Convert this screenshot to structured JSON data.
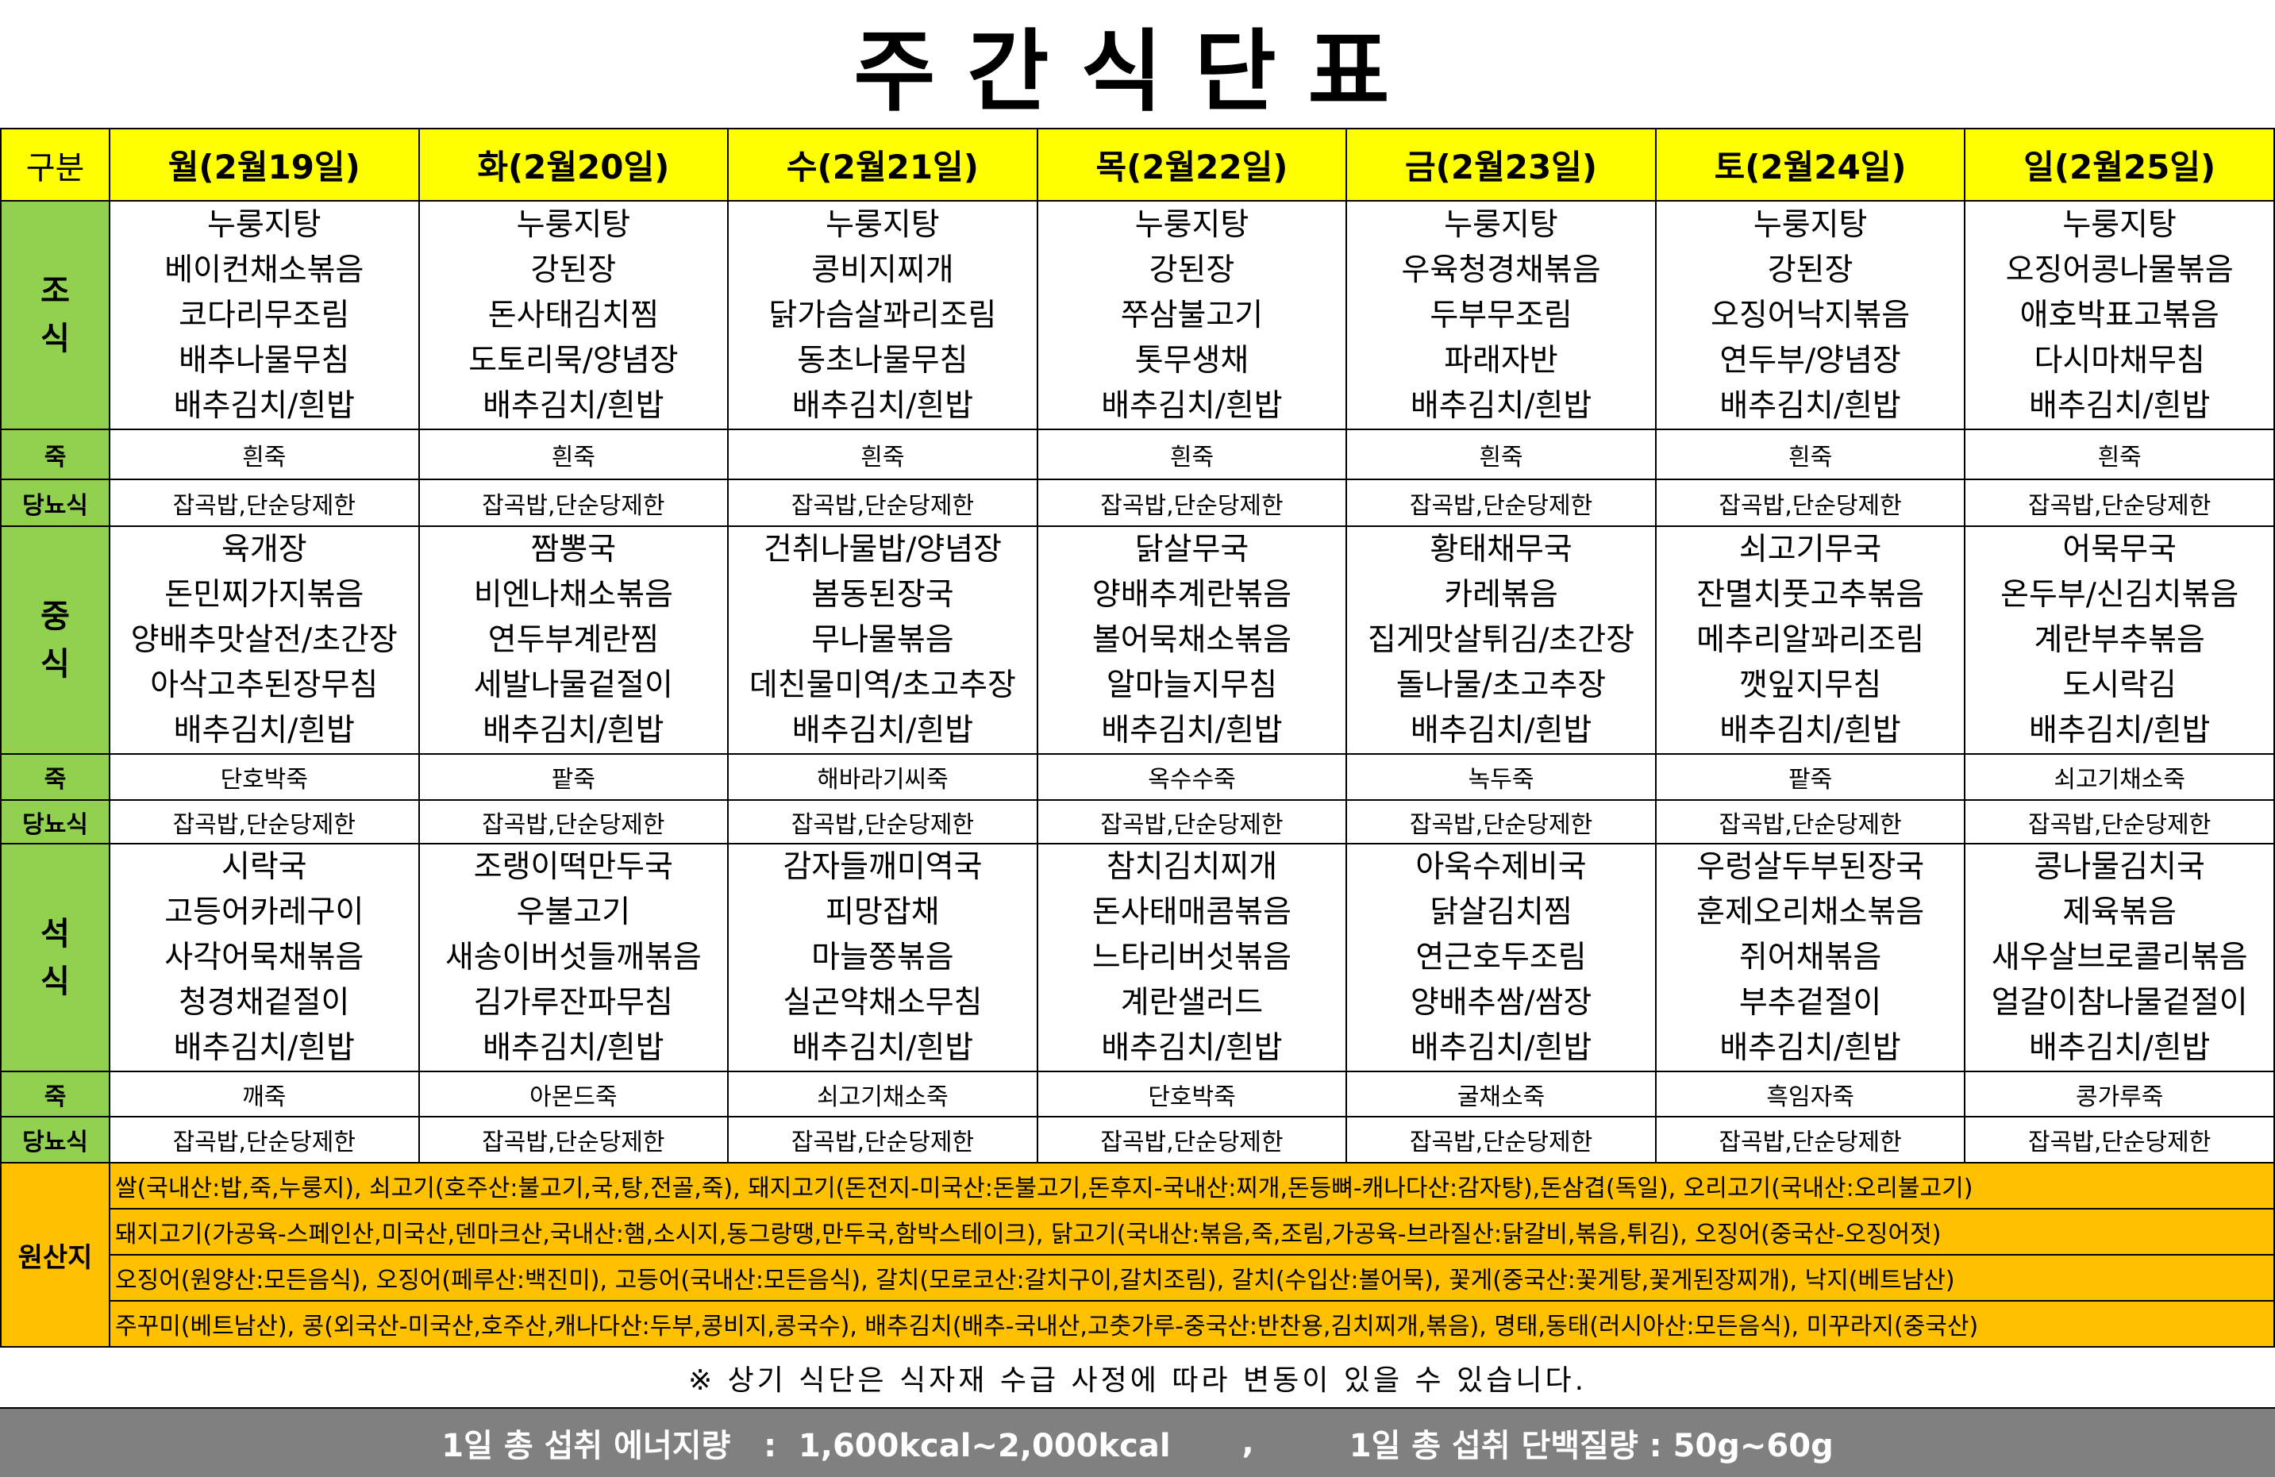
{
  "title": "주간식단표",
  "header": {
    "label": "구분",
    "days": [
      "월(2월19일)",
      "화(2월20일)",
      "수(2월21일)",
      "목(2월22일)",
      "금(2월23일)",
      "토(2월24일)",
      "일(2월25일)"
    ]
  },
  "meals": [
    {
      "label": "조식",
      "items": [
        [
          "누룽지탕",
          "베이컨채소볶음",
          "코다리무조림",
          "배추나물무침",
          "배추김치/흰밥"
        ],
        [
          "누룽지탕",
          "강된장",
          "돈사태김치찜",
          "도토리묵/양념장",
          "배추김치/흰밥"
        ],
        [
          "누룽지탕",
          "콩비지찌개",
          "닭가슴살꽈리조림",
          "동초나물무침",
          "배추김치/흰밥"
        ],
        [
          "누룽지탕",
          "강된장",
          "쭈삼불고기",
          "톳무생채",
          "배추김치/흰밥"
        ],
        [
          "누룽지탕",
          "우육청경채볶음",
          "두부무조림",
          "파래자반",
          "배추김치/흰밥"
        ],
        [
          "누룽지탕",
          "강된장",
          "오징어낙지볶음",
          "연두부/양념장",
          "배추김치/흰밥"
        ],
        [
          "누룽지탕",
          "오징어콩나물볶음",
          "애호박표고볶음",
          "다시마채무침",
          "배추김치/흰밥"
        ]
      ],
      "porridge_label": "죽",
      "porridge": [
        "흰죽",
        "흰죽",
        "흰죽",
        "흰죽",
        "흰죽",
        "흰죽",
        "흰죽"
      ],
      "diabetic_label": "당뇨식",
      "diabetic": [
        "잡곡밥,단순당제한",
        "잡곡밥,단순당제한",
        "잡곡밥,단순당제한",
        "잡곡밥,단순당제한",
        "잡곡밥,단순당제한",
        "잡곡밥,단순당제한",
        "잡곡밥,단순당제한"
      ]
    },
    {
      "label": "중식",
      "items": [
        [
          "육개장",
          "돈민찌가지볶음",
          "양배추맛살전/초간장",
          "아삭고추된장무침",
          "배추김치/흰밥"
        ],
        [
          "짬뽕국",
          "비엔나채소볶음",
          "연두부계란찜",
          "세발나물겉절이",
          "배추김치/흰밥"
        ],
        [
          "건취나물밥/양념장",
          "봄동된장국",
          "무나물볶음",
          "데친물미역/초고추장",
          "배추김치/흰밥"
        ],
        [
          "닭살무국",
          "양배추계란볶음",
          "볼어묵채소볶음",
          "알마늘지무침",
          "배추김치/흰밥"
        ],
        [
          "황태채무국",
          "카레볶음",
          "집게맛살튀김/초간장",
          "돌나물/초고추장",
          "배추김치/흰밥"
        ],
        [
          "쇠고기무국",
          "잔멸치풋고추볶음",
          "메추리알꽈리조림",
          "깻잎지무침",
          "배추김치/흰밥"
        ],
        [
          "어묵무국",
          "온두부/신김치볶음",
          "계란부추볶음",
          "도시락김",
          "배추김치/흰밥"
        ]
      ],
      "porridge_label": "죽",
      "porridge": [
        "단호박죽",
        "팥죽",
        "해바라기씨죽",
        "옥수수죽",
        "녹두죽",
        "팥죽",
        "쇠고기채소죽"
      ],
      "diabetic_label": "당뇨식",
      "diabetic": [
        "잡곡밥,단순당제한",
        "잡곡밥,단순당제한",
        "잡곡밥,단순당제한",
        "잡곡밥,단순당제한",
        "잡곡밥,단순당제한",
        "잡곡밥,단순당제한",
        "잡곡밥,단순당제한"
      ]
    },
    {
      "label": "석식",
      "items": [
        [
          "시락국",
          "고등어카레구이",
          "사각어묵채볶음",
          "청경채겉절이",
          "배추김치/흰밥"
        ],
        [
          "조랭이떡만두국",
          "우불고기",
          "새송이버섯들깨볶음",
          "김가루잔파무침",
          "배추김치/흰밥"
        ],
        [
          "감자들깨미역국",
          "피망잡채",
          "마늘쫑볶음",
          "실곤약채소무침",
          "배추김치/흰밥"
        ],
        [
          "참치김치찌개",
          "돈사태매콤볶음",
          "느타리버섯볶음",
          "계란샐러드",
          "배추김치/흰밥"
        ],
        [
          "아욱수제비국",
          "닭살김치찜",
          "연근호두조림",
          "양배추쌈/쌈장",
          "배추김치/흰밥"
        ],
        [
          "우렁살두부된장국",
          "훈제오리채소볶음",
          "쥐어채볶음",
          "부추겉절이",
          "배추김치/흰밥"
        ],
        [
          "콩나물김치국",
          "제육볶음",
          "새우살브로콜리볶음",
          "얼갈이참나물겉절이",
          "배추김치/흰밥"
        ]
      ],
      "porridge_label": "죽",
      "porridge": [
        "깨죽",
        "아몬드죽",
        "쇠고기채소죽",
        "단호박죽",
        "굴채소죽",
        "흑임자죽",
        "콩가루죽"
      ],
      "diabetic_label": "당뇨식",
      "diabetic": [
        "잡곡밥,단순당제한",
        "잡곡밥,단순당제한",
        "잡곡밥,단순당제한",
        "잡곡밥,단순당제한",
        "잡곡밥,단순당제한",
        "잡곡밥,단순당제한",
        "잡곡밥,단순당제한"
      ]
    }
  ],
  "origin": {
    "label": "원산지",
    "lines": [
      "쌀(국내산:밥,죽,누룽지), 쇠고기(호주산:불고기,국,탕,전골,죽), 돼지고기(돈전지-미국산:돈불고기,돈후지-국내산:찌개,돈등뼈-캐나다산:감자탕),돈삼겹(독일), 오리고기(국내산:오리불고기)",
      "돼지고기(가공육-스페인산,미국산,덴마크산,국내산:햄,소시지,동그랑땡,만두국,함박스테이크), 닭고기(국내산:볶음,죽,조림,가공육-브라질산:닭갈비,볶음,튀김), 오징어(중국산-오징어젓)",
      "오징어(원양산:모든음식), 오징어(페루산:백진미), 고등어(국내산:모든음식), 갈치(모로코산:갈치구이,갈치조림), 갈치(수입산:볼어묵), 꽃게(중국산:꽃게탕,꽃게된장찌개), 낙지(베트남산)",
      "주꾸미(베트남산), 콩(외국산-미국산,호주산,캐나다산:두부,콩비지,콩국수), 배추김치(배추-국내산,고춧가루-중국산:반찬용,김치찌개,볶음), 명태,동태(러시아산:모든음식), 미꾸라지(중국산)"
    ]
  },
  "note": "※ 상기 식단은 식자재 수급 사정에 따라 변동이 있을 수 있습니다.",
  "footer": {
    "energy": "1일 총 섭취 에너지량   :  1,600kcal~2,000kcal",
    "separator": ",",
    "protein": "1일 총 섭취 단백질량 : 50g~60g"
  },
  "colors": {
    "header": "#ffff00",
    "label": "#92d050",
    "origin": "#ffc000",
    "footer": "#808080"
  }
}
